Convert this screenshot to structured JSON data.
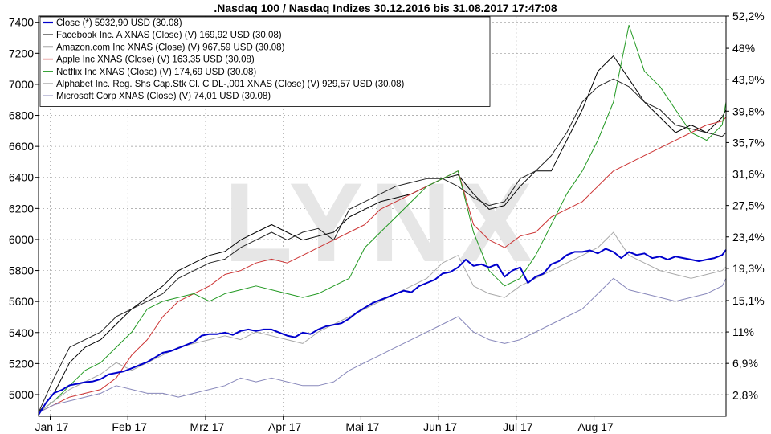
{
  "chart_data": {
    "type": "line",
    "title": ".Nasdaq 100 / Nasdaq Indizes 30.12.2016 bis 31.08.2017 17:47:08",
    "watermark": "LYNX",
    "x_labels": [
      "Jan 17",
      "Feb 17",
      "Mrz 17",
      "Apr 17",
      "Mai 17",
      "Jun 17",
      "Jul 17",
      "Aug 17"
    ],
    "y_left_ticks": [
      "5000",
      "5200",
      "5400",
      "5600",
      "5800",
      "6000",
      "6200",
      "6400",
      "6600",
      "6800",
      "7000",
      "7200",
      "7400"
    ],
    "y_right_ticks": [
      "2,8%",
      "6,9%",
      "11%",
      "15,1%",
      "19,3%",
      "23,4%",
      "27,5%",
      "31,6%",
      "35,7%",
      "39,8%",
      "43,9%",
      "48%",
      "52,2%"
    ],
    "ylim_left": [
      4860,
      7440
    ],
    "ylim_right_pct": [
      0,
      52.2
    ],
    "grid": true,
    "legend_position": "top-left",
    "x_range": [
      0,
      8.85
    ],
    "series": [
      {
        "name": "Close (*) 5932,90 USD (30.08)",
        "color": "#0000cc",
        "axis": "left",
        "x": [
          0,
          0.1,
          0.2,
          0.3,
          0.4,
          0.5,
          0.6,
          0.7,
          0.8,
          0.9,
          1.0,
          1.1,
          1.2,
          1.3,
          1.4,
          1.5,
          1.6,
          1.7,
          1.8,
          1.9,
          2.0,
          2.1,
          2.2,
          2.3,
          2.4,
          2.5,
          2.6,
          2.7,
          2.8,
          2.9,
          3.0,
          3.1,
          3.2,
          3.3,
          3.4,
          3.5,
          3.6,
          3.7,
          3.8,
          3.9,
          4.0,
          4.1,
          4.2,
          4.3,
          4.4,
          4.5,
          4.6,
          4.7,
          4.8,
          4.9,
          5.0,
          5.1,
          5.2,
          5.3,
          5.4,
          5.5,
          5.6,
          5.7,
          5.8,
          5.9,
          6.0,
          6.1,
          6.2,
          6.3,
          6.4,
          6.5,
          6.6,
          6.7,
          6.8,
          6.9,
          7.0,
          7.1,
          7.2,
          7.3,
          7.4,
          7.5,
          7.6,
          7.7,
          7.8,
          7.9,
          8.0,
          8.1,
          8.2,
          8.3,
          8.4,
          8.5,
          8.6,
          8.7,
          8.8,
          8.85
        ],
        "y": [
          4870,
          4950,
          5010,
          5030,
          5060,
          5070,
          5080,
          5085,
          5100,
          5130,
          5140,
          5150,
          5170,
          5190,
          5210,
          5240,
          5270,
          5280,
          5300,
          5320,
          5340,
          5380,
          5390,
          5390,
          5400,
          5385,
          5410,
          5420,
          5410,
          5420,
          5420,
          5400,
          5380,
          5370,
          5400,
          5390,
          5420,
          5440,
          5450,
          5460,
          5490,
          5530,
          5560,
          5590,
          5610,
          5630,
          5650,
          5670,
          5660,
          5700,
          5720,
          5740,
          5780,
          5790,
          5820,
          5870,
          5830,
          5840,
          5820,
          5840,
          5760,
          5800,
          5820,
          5720,
          5760,
          5780,
          5840,
          5860,
          5900,
          5920,
          5920,
          5930,
          5910,
          5940,
          5920,
          5880,
          5920,
          5900,
          5910,
          5880,
          5890,
          5870,
          5890,
          5880,
          5870,
          5860,
          5870,
          5880,
          5900,
          5933
        ]
      },
      {
        "name": "Facebook Inc. A XNAS (Close) (V) 169,92 USD (30.08)",
        "color": "#000000",
        "axis": "right",
        "x": [
          0,
          0.2,
          0.4,
          0.6,
          0.8,
          1.0,
          1.2,
          1.4,
          1.6,
          1.8,
          2.0,
          2.2,
          2.4,
          2.6,
          2.8,
          3.0,
          3.2,
          3.4,
          3.6,
          3.8,
          4.0,
          4.2,
          4.4,
          4.6,
          4.8,
          5.0,
          5.2,
          5.4,
          5.6,
          5.8,
          6.0,
          6.2,
          6.4,
          6.6,
          6.8,
          7.0,
          7.2,
          7.4,
          7.6,
          7.8,
          8.0,
          8.2,
          8.4,
          8.6,
          8.8,
          8.85
        ],
        "y": [
          0.5,
          3,
          7,
          9,
          10,
          12,
          14,
          15.5,
          17,
          19,
          20,
          21,
          21.5,
          23,
          24,
          25,
          24,
          23,
          23.5,
          24,
          26,
          27,
          28,
          28.5,
          29,
          30,
          31,
          31.5,
          29,
          27,
          27.5,
          30,
          32,
          32,
          36,
          40,
          45,
          47,
          44,
          41,
          39,
          37,
          38,
          37,
          39,
          40
        ]
      },
      {
        "name": "Amazon.com Inc XNAS (Close) (V) 967,59 USD (30.08)",
        "color": "#222222",
        "axis": "right",
        "x": [
          0,
          0.2,
          0.4,
          0.6,
          0.8,
          1.0,
          1.2,
          1.4,
          1.6,
          1.8,
          2.0,
          2.2,
          2.4,
          2.6,
          2.8,
          3.0,
          3.2,
          3.4,
          3.6,
          3.8,
          4.0,
          4.2,
          4.4,
          4.6,
          4.8,
          5.0,
          5.2,
          5.4,
          5.6,
          5.8,
          6.0,
          6.2,
          6.4,
          6.6,
          6.8,
          7.0,
          7.2,
          7.4,
          7.6,
          7.8,
          8.0,
          8.2,
          8.4,
          8.6,
          8.8,
          8.85
        ],
        "y": [
          0.5,
          5,
          9,
          10,
          11,
          13,
          14,
          15,
          16,
          18,
          19,
          20,
          20.5,
          22,
          23,
          24,
          23,
          24,
          24.5,
          23,
          27,
          28,
          29,
          30,
          30.5,
          31,
          31,
          30,
          28.5,
          27.5,
          28,
          31,
          32,
          34,
          37,
          41,
          43,
          44,
          43,
          41,
          40,
          38,
          37.5,
          37,
          36.5,
          37
        ]
      },
      {
        "name": "Apple Inc XNAS (Close) (V) 163,35 USD (30.08)",
        "color": "#cc3333",
        "axis": "right",
        "x": [
          0,
          0.2,
          0.4,
          0.6,
          0.8,
          1.0,
          1.2,
          1.4,
          1.6,
          1.8,
          2.0,
          2.2,
          2.4,
          2.6,
          2.8,
          3.0,
          3.2,
          3.4,
          3.6,
          3.8,
          4.0,
          4.2,
          4.4,
          4.6,
          4.8,
          5.0,
          5.2,
          5.4,
          5.6,
          5.8,
          6.0,
          6.2,
          6.4,
          6.6,
          6.8,
          7.0,
          7.2,
          7.4,
          7.6,
          7.8,
          8.0,
          8.2,
          8.4,
          8.6,
          8.8,
          8.85
        ],
        "y": [
          0.5,
          1.5,
          2.5,
          3,
          3.5,
          5,
          8,
          10,
          13,
          15,
          16,
          17,
          18.5,
          19,
          20,
          20.5,
          20,
          21,
          22,
          23,
          24,
          25,
          27,
          28,
          29,
          30,
          31,
          32,
          25,
          23,
          22,
          23.5,
          24,
          26,
          27,
          28,
          30,
          32,
          33,
          34,
          35,
          36,
          37,
          38,
          38.5,
          39
        ]
      },
      {
        "name": "Netflix Inc XNAS (Close) (V) 174,69 USD (30.08)",
        "color": "#229922",
        "axis": "right",
        "x": [
          0,
          0.2,
          0.4,
          0.6,
          0.8,
          1.0,
          1.2,
          1.4,
          1.6,
          1.8,
          2.0,
          2.2,
          2.4,
          2.6,
          2.8,
          3.0,
          3.2,
          3.4,
          3.6,
          3.8,
          4.0,
          4.2,
          4.4,
          4.6,
          4.8,
          5.0,
          5.2,
          5.4,
          5.6,
          5.8,
          6.0,
          6.2,
          6.4,
          6.6,
          6.8,
          7.0,
          7.2,
          7.4,
          7.6,
          7.8,
          8.0,
          8.2,
          8.4,
          8.6,
          8.8,
          8.85
        ],
        "y": [
          0.5,
          2,
          4,
          6,
          7,
          9,
          11,
          14,
          15,
          15.5,
          16,
          15,
          16,
          16.5,
          17,
          16.5,
          16,
          15.5,
          16,
          17,
          18,
          22,
          24,
          26,
          28,
          30,
          31,
          32,
          24,
          19,
          17,
          18,
          21,
          25,
          29,
          32,
          36,
          41,
          51,
          45,
          43,
          40,
          37,
          36,
          38,
          41
        ]
      },
      {
        "name": "Alphabet Inc. Reg. Shs Cap.Stk Cl. C DL-,001 XNAS (Close) (V) 929,57 USD (30.08)",
        "color": "#a8a8a8",
        "axis": "right",
        "x": [
          0,
          0.2,
          0.4,
          0.6,
          0.8,
          1.0,
          1.2,
          1.4,
          1.6,
          1.8,
          2.0,
          2.2,
          2.4,
          2.6,
          2.8,
          3.0,
          3.2,
          3.4,
          3.6,
          3.8,
          4.0,
          4.2,
          4.4,
          4.6,
          4.8,
          5.0,
          5.2,
          5.4,
          5.6,
          5.8,
          6.0,
          6.2,
          6.4,
          6.6,
          6.8,
          7.0,
          7.2,
          7.4,
          7.6,
          7.8,
          8.0,
          8.2,
          8.4,
          8.6,
          8.8,
          8.85
        ],
        "y": [
          0.5,
          2,
          3.5,
          4.5,
          5.5,
          7,
          6,
          7,
          8,
          9,
          9.5,
          10,
          10.5,
          10,
          11,
          10.5,
          10,
          9.5,
          11,
          12,
          13,
          14,
          15,
          16,
          17,
          18,
          20,
          21,
          17,
          16,
          15.5,
          17,
          18,
          19,
          20,
          21,
          22,
          24,
          21,
          20,
          19,
          18.5,
          18,
          18.5,
          19,
          19.5
        ]
      },
      {
        "name": "Microsoft Corp XNAS (Close) (V) 74,01 USD (30.08)",
        "color": "#8888bb",
        "axis": "right",
        "x": [
          0,
          0.2,
          0.4,
          0.6,
          0.8,
          1.0,
          1.2,
          1.4,
          1.6,
          1.8,
          2.0,
          2.2,
          2.4,
          2.6,
          2.8,
          3.0,
          3.2,
          3.4,
          3.6,
          3.8,
          4.0,
          4.2,
          4.4,
          4.6,
          4.8,
          5.0,
          5.2,
          5.4,
          5.6,
          5.8,
          6.0,
          6.2,
          6.4,
          6.6,
          6.8,
          7.0,
          7.2,
          7.4,
          7.6,
          7.8,
          8.0,
          8.2,
          8.4,
          8.6,
          8.8,
          8.85
        ],
        "y": [
          0.5,
          1.5,
          2,
          2.5,
          3,
          4,
          3.5,
          3,
          3,
          2.5,
          3,
          3.5,
          4,
          5,
          4.5,
          5,
          4.5,
          4,
          4,
          4.5,
          6,
          7,
          8,
          9,
          10,
          11,
          12,
          13,
          11,
          10,
          9.5,
          10,
          11,
          12,
          13,
          14,
          16,
          18,
          16.5,
          16,
          15.5,
          15,
          15.5,
          16,
          17,
          18
        ]
      }
    ]
  }
}
